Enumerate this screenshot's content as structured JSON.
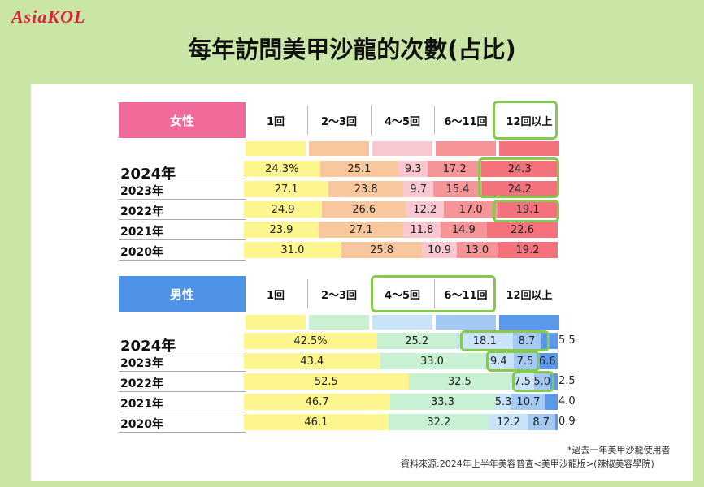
{
  "logo": "AsiaKOL",
  "title": "每年訪問美甲沙龍的次數(占比)",
  "chart_data": [
    {
      "type": "bar",
      "group": "女性",
      "categories": [
        "1回",
        "2〜3回",
        "4〜5回",
        "6〜11回",
        "12回以上"
      ],
      "colors": [
        "#fdf68f",
        "#f9c79e",
        "#f8c7cf",
        "#f59597",
        "#f4727b"
      ],
      "rows": [
        {
          "year": "2024年",
          "values": [
            24.3,
            25.1,
            9.3,
            17.2,
            24.3
          ],
          "labels": [
            "24.3%",
            "25.1",
            "9.3",
            "17.2",
            "24.3"
          ]
        },
        {
          "year": "2023年",
          "values": [
            27.1,
            23.8,
            9.7,
            15.4,
            24.2
          ],
          "labels": [
            "27.1",
            "23.8",
            "9.7",
            "15.4",
            "24.2"
          ]
        },
        {
          "year": "2022年",
          "values": [
            24.9,
            26.6,
            12.2,
            17.0,
            19.1
          ],
          "labels": [
            "24.9",
            "26.6",
            "12.2",
            "17.0",
            "19.1"
          ]
        },
        {
          "year": "2021年",
          "values": [
            23.9,
            27.1,
            11.8,
            14.9,
            22.6
          ],
          "labels": [
            "23.9",
            "27.1",
            "11.8",
            "14.9",
            "22.6"
          ]
        },
        {
          "year": "2020年",
          "values": [
            31.0,
            25.8,
            10.9,
            13.0,
            19.2
          ],
          "labels": [
            "31.0",
            "25.8",
            "10.9",
            "13.0",
            "19.2"
          ]
        }
      ]
    },
    {
      "type": "bar",
      "group": "男性",
      "categories": [
        "1回",
        "2〜3回",
        "4〜5回",
        "6〜11回",
        "12回以上"
      ],
      "colors": [
        "#fdf68f",
        "#c8f0d3",
        "#c9e4f8",
        "#a3c9f2",
        "#5a98ea"
      ],
      "rows": [
        {
          "year": "2024年",
          "values": [
            42.5,
            25.2,
            18.1,
            8.7,
            5.5
          ],
          "labels": [
            "42.5%",
            "25.2",
            "18.1",
            "8.7",
            "5.5"
          ]
        },
        {
          "year": "2023年",
          "values": [
            43.4,
            33.0,
            9.4,
            7.5,
            6.6
          ],
          "labels": [
            "43.4",
            "33.0",
            "9.4",
            "7.5",
            "6.6"
          ]
        },
        {
          "year": "2022年",
          "values": [
            52.5,
            32.5,
            7.5,
            5.0,
            2.5
          ],
          "labels": [
            "52.5",
            "32.5",
            "7.5",
            "5.0",
            "2.5"
          ]
        },
        {
          "year": "2021年",
          "values": [
            46.7,
            33.3,
            5.3,
            10.7,
            4.0
          ],
          "labels": [
            "46.7",
            "33.3",
            "5.3",
            "10.7",
            "4.0"
          ]
        },
        {
          "year": "2020年",
          "values": [
            46.1,
            32.2,
            12.2,
            8.7,
            0.9
          ],
          "labels": [
            "46.1",
            "32.2",
            "12.2",
            "8.7",
            "0.9"
          ]
        }
      ]
    }
  ],
  "header_colors": {
    "female": "#ef6a98",
    "male": "#4f93e8",
    "highlight": "#86c94e"
  },
  "footnote": "*過去一年美甲沙龍使用者",
  "source_prefix": "資料來源:",
  "source_link": "2024年上半年美容普查<美甲沙龍版>",
  "source_suffix": "(辣椒美容學院)"
}
